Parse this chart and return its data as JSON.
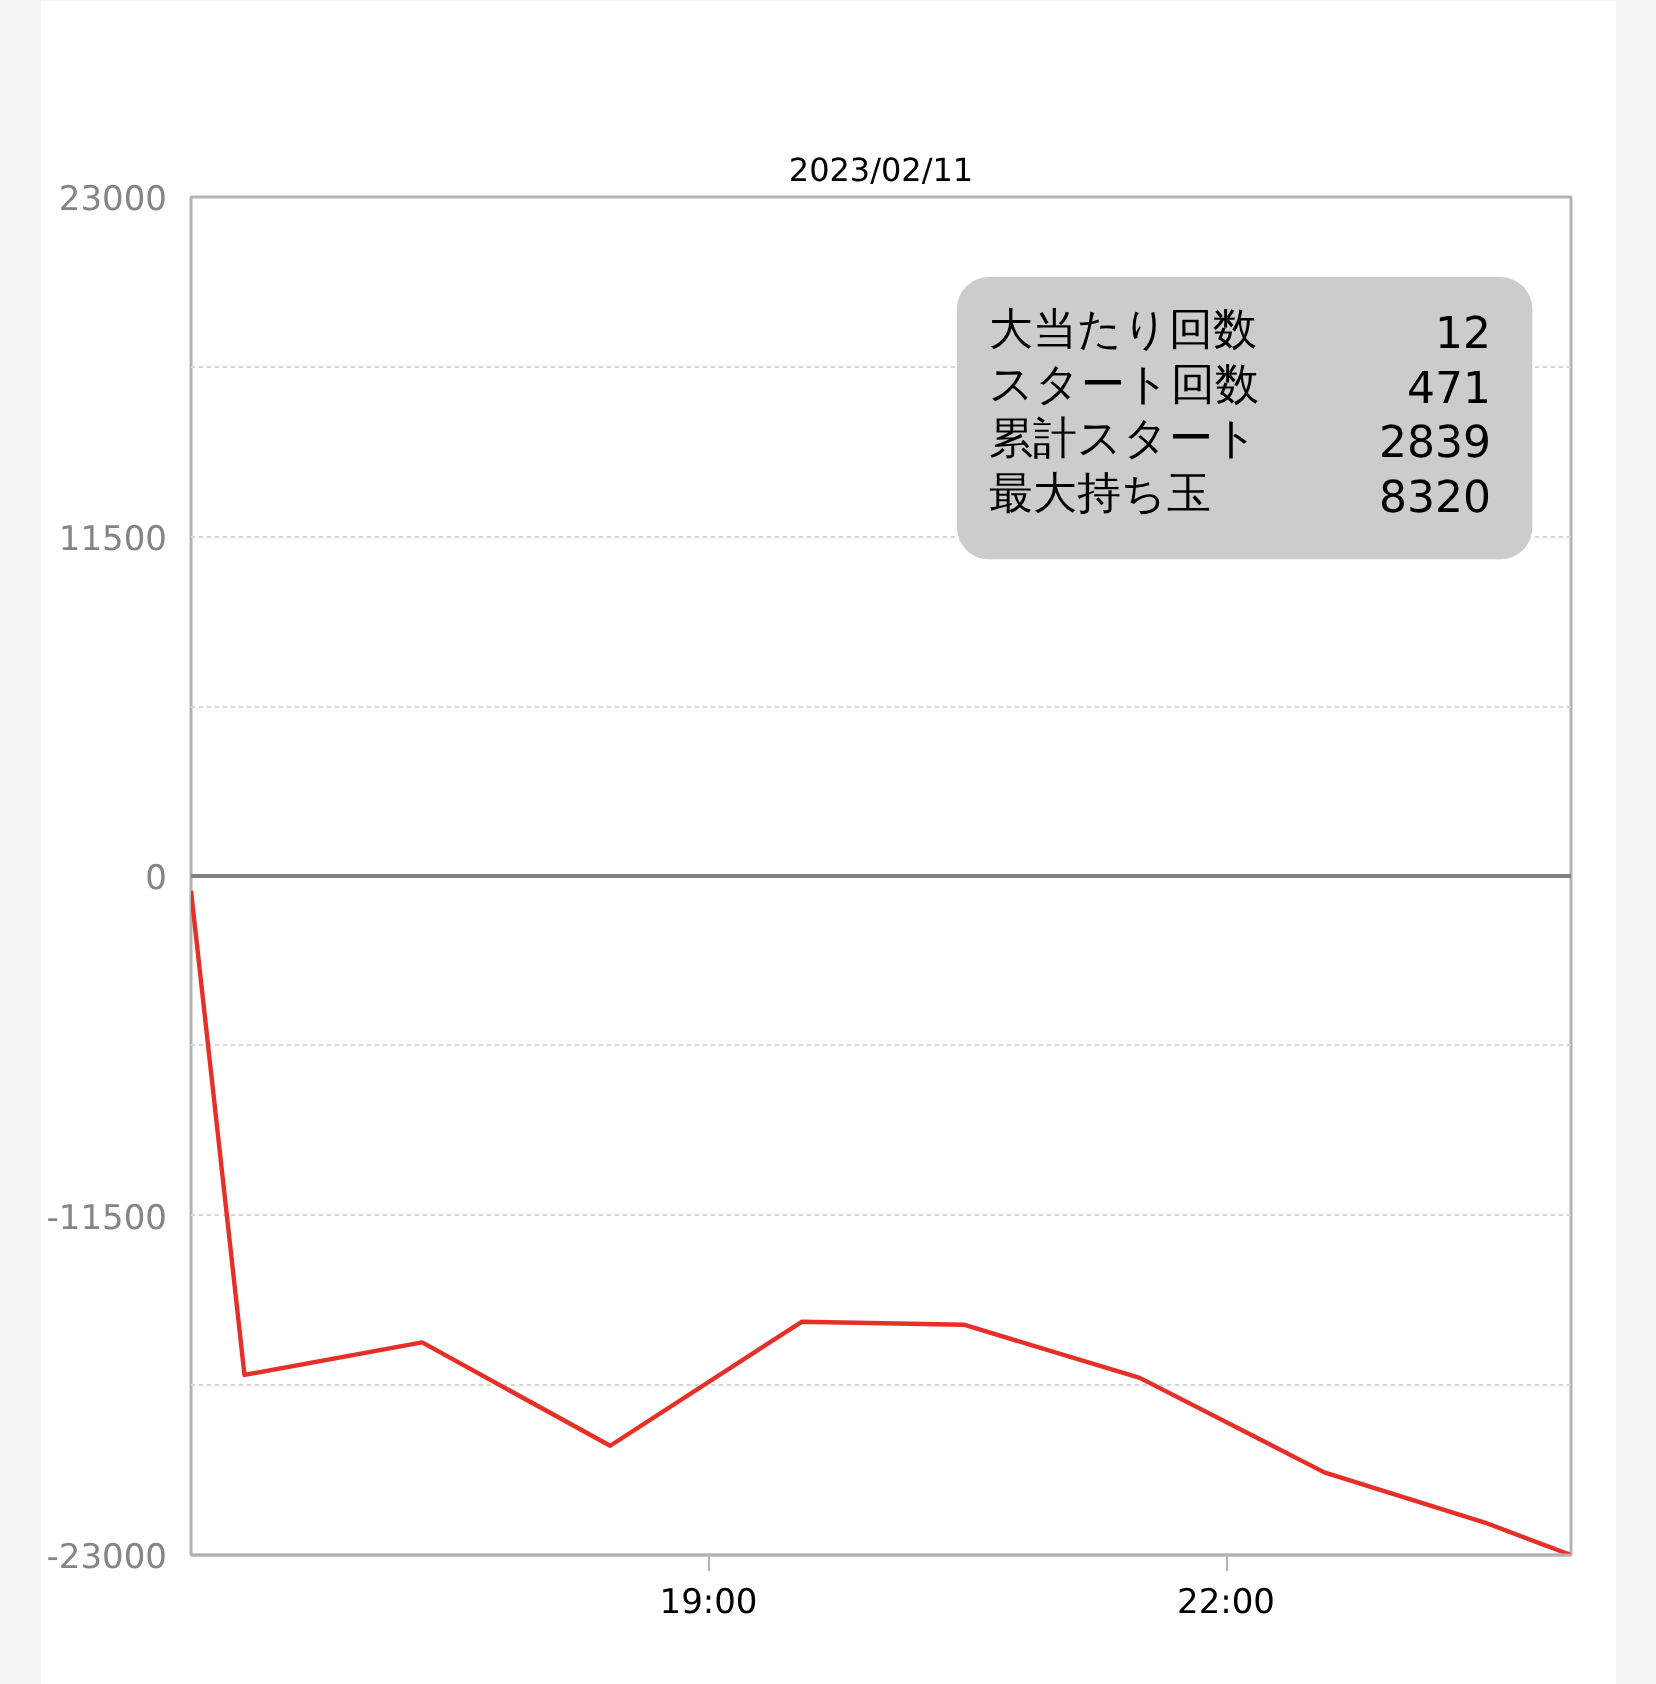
{
  "chart_data": {
    "type": "line",
    "title": "2023/02/11",
    "x": [
      16.0,
      16.31,
      17.34,
      18.43,
      19.54,
      20.48,
      21.5,
      22.57,
      23.5,
      24.0
    ],
    "series": [
      {
        "color": "#e63027",
        "values": [
          -500,
          -16900,
          -15800,
          -19300,
          -15100,
          -15200,
          -17000,
          -20200,
          -21900,
          -23000
        ]
      }
    ],
    "xlim": [
      16,
      24
    ],
    "xticks": [
      {
        "value": 19,
        "label": "19:00"
      },
      {
        "value": 22,
        "label": "22:00"
      }
    ],
    "ylim": [
      -23000,
      23000
    ],
    "yticks": [
      23000,
      {
        "value": 17250,
        "label": null
      },
      11500,
      {
        "value": 5750,
        "label": null
      },
      0,
      {
        "value": -5750,
        "label": null
      },
      -11500,
      {
        "value": -17250,
        "label": null
      },
      -23000
    ],
    "grid": "y",
    "ref_lines": [
      {
        "axis": "y",
        "value": 0,
        "color": "#808080"
      }
    ],
    "annotations": [
      "大当たり回数",
      "12",
      "スタート回数",
      "471",
      "累計スタート",
      "2839",
      "最大持ち玉",
      "8320"
    ]
  }
}
